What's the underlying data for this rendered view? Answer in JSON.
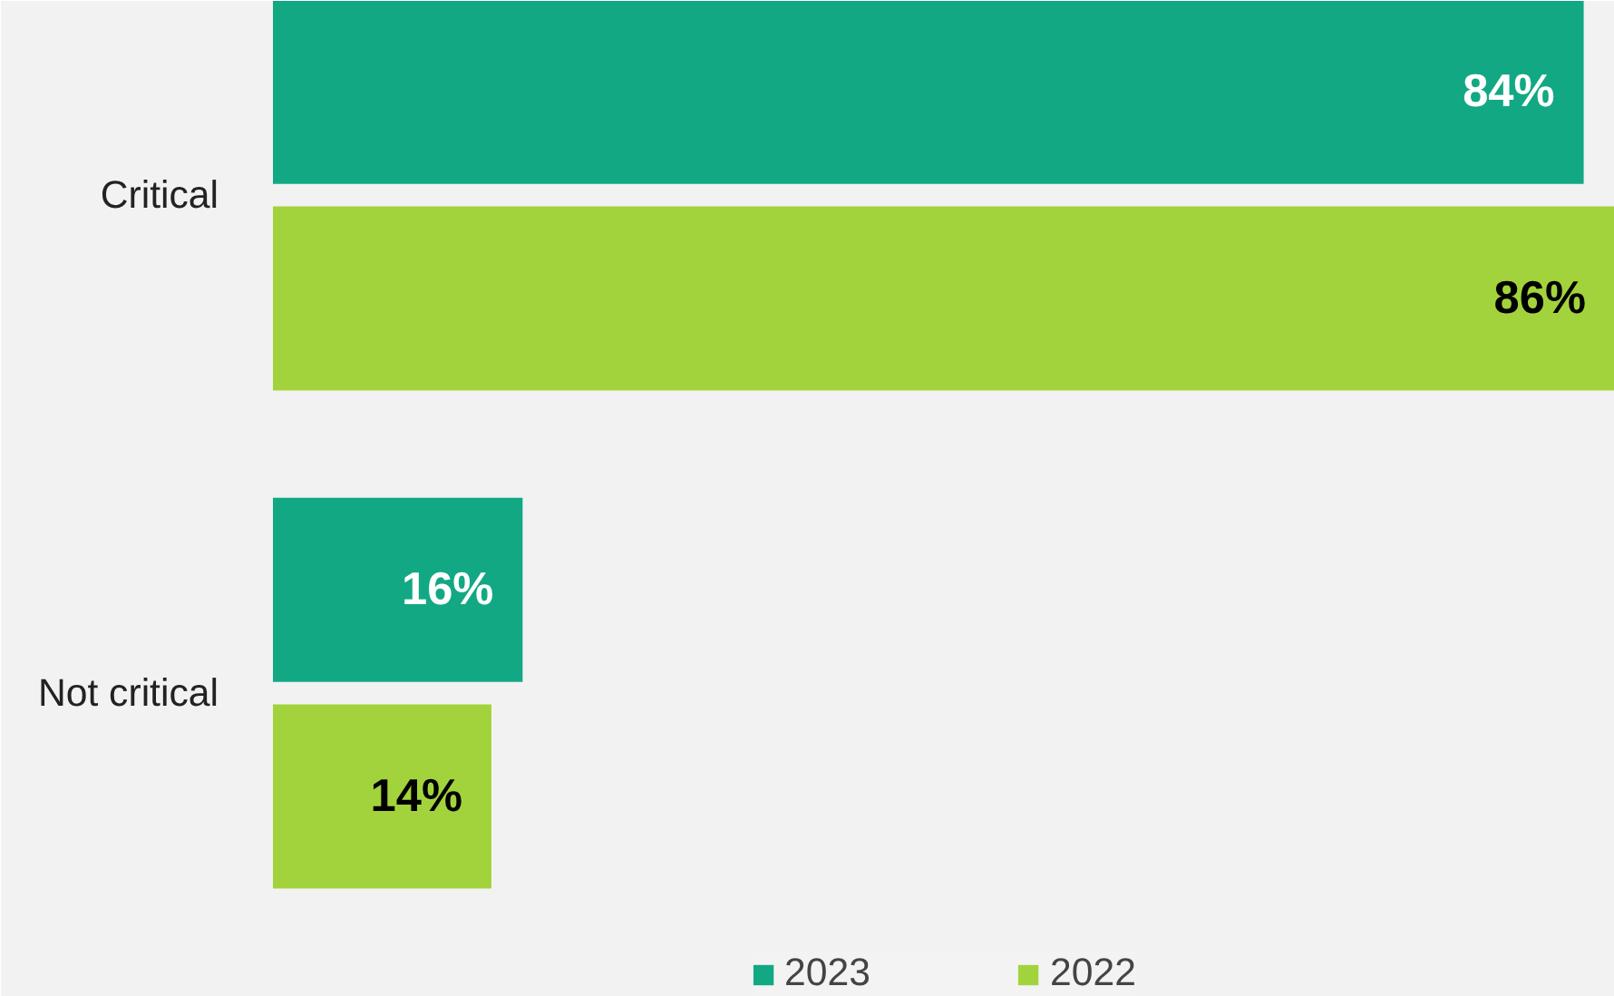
{
  "chart_data": {
    "type": "bar",
    "orientation": "horizontal",
    "categories": [
      "Critical",
      "Not critical"
    ],
    "xlim": [
      0,
      86
    ],
    "tick_labels": "y",
    "grid": false,
    "legend": "bottom",
    "series": [
      {
        "name": "2023",
        "color": "#13a884",
        "values": [
          84,
          16
        ],
        "value_labels": [
          "84%",
          "16%"
        ]
      },
      {
        "name": "2022",
        "color": "#a3d33c",
        "values": [
          86,
          14
        ],
        "value_labels": [
          "86%",
          "14%"
        ]
      }
    ]
  }
}
